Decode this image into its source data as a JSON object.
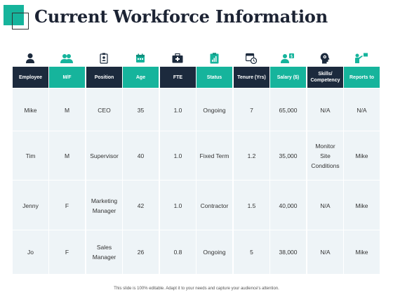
{
  "title": "Current Workforce Information",
  "colors": {
    "dark": "#1c2a3d",
    "teal": "#16b49c",
    "row_bg": "#eef4f7"
  },
  "icons": [
    "user-icon",
    "users-icon",
    "id-badge-icon",
    "calendar-icon",
    "briefcase-medical-icon",
    "clipboard-icon",
    "calendar-clock-icon",
    "salary-user-icon",
    "head-gear-icon",
    "presenter-icon"
  ],
  "table": {
    "headers": [
      "Employee",
      "M/F",
      "Position",
      "Age",
      "FTE",
      "Status",
      "Tenure (Yrs)",
      "Salary ($)",
      "Skills/\nCompetency",
      "Reports to"
    ],
    "rows": [
      [
        "Mike",
        "M",
        "CEO",
        "35",
        "1.0",
        "Ongoing",
        "7",
        "65,000",
        "N/A",
        "N/A"
      ],
      [
        "Tim",
        "M",
        "Supervisor",
        "40",
        "1.0",
        "Fixed Term",
        "1.2",
        "35,000",
        "Monitor Site Conditions",
        "Mike"
      ],
      [
        "Jenny",
        "F",
        "Marketing Manager",
        "42",
        "1.0",
        "Contractor",
        "1.5",
        "40,000",
        "N/A",
        "Mike"
      ],
      [
        "Jo",
        "F",
        "Sales Manager",
        "26",
        "0.8",
        "Ongoing",
        "5",
        "38,000",
        "N/A",
        "Mike"
      ]
    ]
  },
  "footer": "This slide is 100% editable. Adapt it to your needs and capture your audience's attention."
}
